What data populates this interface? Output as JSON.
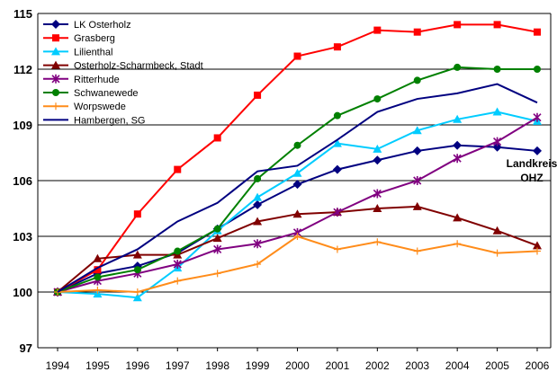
{
  "chart_data": {
    "type": "line",
    "x": [
      1994,
      1995,
      1996,
      1997,
      1998,
      1999,
      2000,
      2001,
      2002,
      2003,
      2004,
      2005,
      2006
    ],
    "ylim": [
      97,
      115
    ],
    "yticks": [
      97,
      100,
      103,
      106,
      109,
      112,
      115
    ],
    "grid": true,
    "legend_position": "top-left",
    "annotation": [
      "Landkreis",
      "OHZ"
    ],
    "series": [
      {
        "name": "LK Osterholz",
        "color": "#000080",
        "marker": "diamond",
        "values": [
          100,
          101.0,
          101.4,
          102.1,
          103.4,
          104.7,
          105.8,
          106.6,
          107.1,
          107.6,
          107.9,
          107.8,
          107.6
        ]
      },
      {
        "name": "Grasberg",
        "color": "#ff0000",
        "marker": "square",
        "values": [
          100,
          101.2,
          104.2,
          106.6,
          108.3,
          110.6,
          112.7,
          113.2,
          114.1,
          114.0,
          114.4,
          114.4,
          114.0
        ]
      },
      {
        "name": "Lilienthal",
        "color": "#00ccff",
        "marker": "triangle",
        "values": [
          100,
          99.9,
          99.7,
          101.3,
          103.3,
          105.1,
          106.4,
          108.0,
          107.7,
          108.7,
          109.3,
          109.7,
          109.2
        ]
      },
      {
        "name": "Osterholz-Scharmbeck, Stadt",
        "color": "#800000",
        "marker": "triangle",
        "values": [
          100,
          101.8,
          102.0,
          102.0,
          102.9,
          103.8,
          104.2,
          104.3,
          104.5,
          104.6,
          104.0,
          103.3,
          102.5
        ]
      },
      {
        "name": "Ritterhude",
        "color": "#800080",
        "marker": "star",
        "values": [
          100,
          100.6,
          101.0,
          101.5,
          102.3,
          102.6,
          103.2,
          104.3,
          105.3,
          106.0,
          107.2,
          108.1,
          109.4
        ]
      },
      {
        "name": "Schwanewede",
        "color": "#008000",
        "marker": "circle",
        "values": [
          100,
          100.8,
          101.2,
          102.2,
          103.4,
          106.1,
          107.9,
          109.5,
          110.4,
          111.4,
          112.1,
          112.0,
          112.0
        ]
      },
      {
        "name": "Worpswede",
        "color": "#ff8c1a",
        "marker": "plus",
        "values": [
          100,
          100.1,
          100.0,
          100.6,
          101.0,
          101.5,
          103.0,
          102.3,
          102.7,
          102.2,
          102.6,
          102.1,
          102.2
        ]
      },
      {
        "name": "Hambergen, SG",
        "color": "#000080",
        "marker": "none",
        "values": [
          100,
          101.3,
          102.3,
          103.8,
          104.8,
          106.5,
          106.8,
          108.2,
          109.7,
          110.4,
          110.7,
          111.2,
          110.2
        ]
      }
    ]
  }
}
